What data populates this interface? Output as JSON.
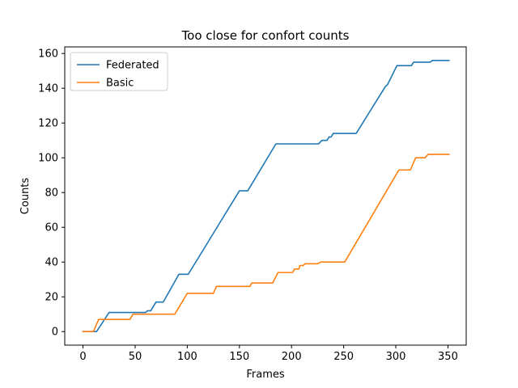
{
  "chart_data": {
    "type": "line",
    "title": "Too close for confort counts",
    "xlabel": "Frames",
    "ylabel": "Counts",
    "xlim": [
      -17.5,
      367.5
    ],
    "ylim": [
      -7.8,
      163.8
    ],
    "xticks": [
      0,
      50,
      100,
      150,
      200,
      250,
      300,
      350
    ],
    "yticks": [
      0,
      20,
      40,
      60,
      80,
      100,
      120,
      140,
      160
    ],
    "grid": false,
    "legend_position": "upper-left",
    "series": [
      {
        "name": "Federated",
        "color": "#1f77b4",
        "points": [
          [
            0,
            0
          ],
          [
            13,
            0
          ],
          [
            25,
            11
          ],
          [
            60,
            11
          ],
          [
            62,
            12
          ],
          [
            65,
            12
          ],
          [
            70,
            17
          ],
          [
            77,
            17
          ],
          [
            92,
            33
          ],
          [
            101,
            33
          ],
          [
            150,
            81
          ],
          [
            158,
            81
          ],
          [
            185,
            108
          ],
          [
            226,
            108
          ],
          [
            229,
            110
          ],
          [
            234,
            110
          ],
          [
            236,
            112
          ],
          [
            238,
            112
          ],
          [
            240,
            114
          ],
          [
            262,
            114
          ],
          [
            290,
            141
          ],
          [
            292,
            142
          ],
          [
            301,
            153
          ],
          [
            315,
            153
          ],
          [
            317,
            155
          ],
          [
            333,
            155
          ],
          [
            335,
            156
          ],
          [
            351,
            156
          ]
        ]
      },
      {
        "name": "Basic",
        "color": "#ff7f0e",
        "points": [
          [
            0,
            0
          ],
          [
            10,
            0
          ],
          [
            15,
            7
          ],
          [
            45,
            7
          ],
          [
            48,
            10
          ],
          [
            88,
            10
          ],
          [
            100,
            22
          ],
          [
            125,
            22
          ],
          [
            128,
            26
          ],
          [
            160,
            26
          ],
          [
            162,
            28
          ],
          [
            182,
            28
          ],
          [
            187,
            34
          ],
          [
            201,
            34
          ],
          [
            203,
            36
          ],
          [
            207,
            36
          ],
          [
            208,
            38
          ],
          [
            211,
            38
          ],
          [
            213,
            39
          ],
          [
            225,
            39
          ],
          [
            228,
            40
          ],
          [
            251,
            40
          ],
          [
            300,
            90
          ],
          [
            303,
            93
          ],
          [
            314,
            93
          ],
          [
            319,
            100
          ],
          [
            328,
            100
          ],
          [
            331,
            102
          ],
          [
            351,
            102
          ]
        ]
      }
    ]
  }
}
